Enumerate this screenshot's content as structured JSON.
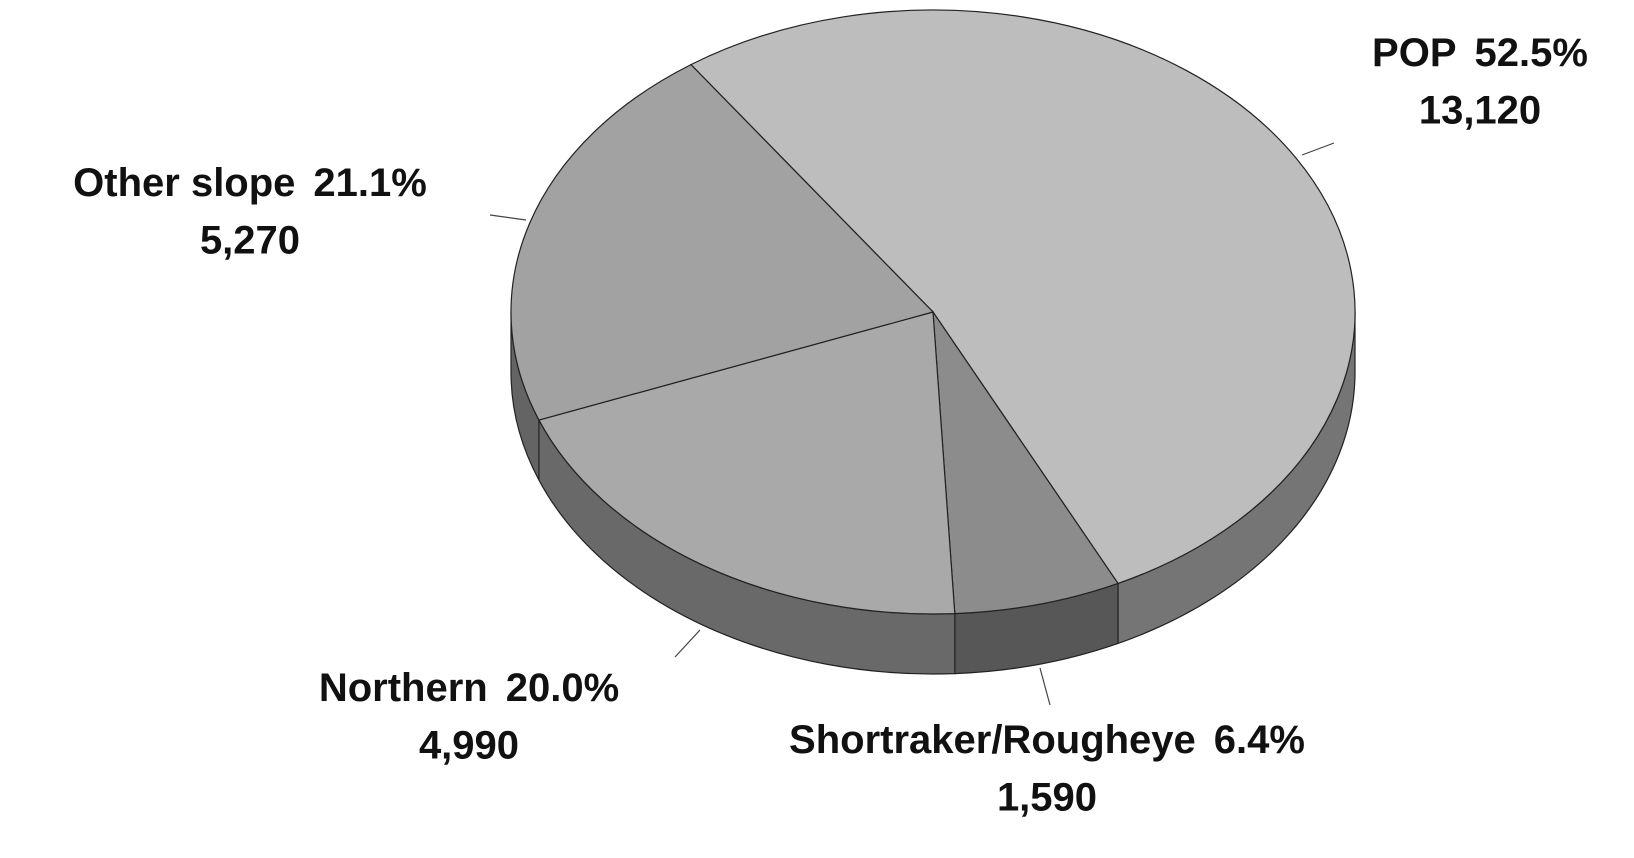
{
  "chart_data": {
    "type": "pie",
    "categories": [
      "POP",
      "Shortraker/Rougheye",
      "Northern",
      "Other slope"
    ],
    "values": [
      52.5,
      6.4,
      20.0,
      21.1
    ],
    "value_labels": [
      "52.5%",
      "6.4%",
      "20.0%",
      "21.1%"
    ],
    "amounts": [
      13120,
      1590,
      4990,
      5270
    ],
    "amount_labels": [
      "13,120",
      "1,590",
      "4,990",
      "5,270"
    ],
    "colors": [
      "#bdbdbd",
      "#8c8c8c",
      "#a9a9a9",
      "#a2a2a2"
    ]
  }
}
